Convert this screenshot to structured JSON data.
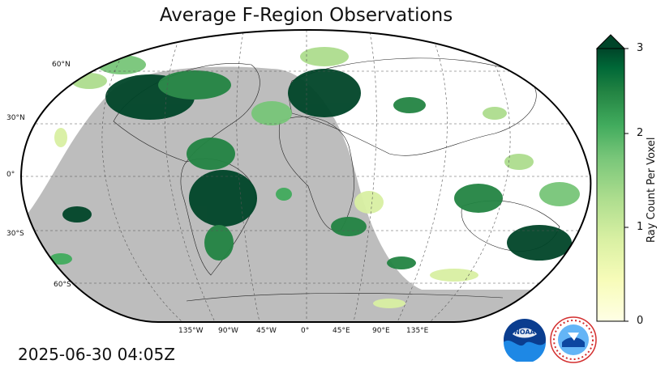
{
  "title": "Average F-Region Observations",
  "timestamp": "2025-06-30 04:05Z",
  "colorbar": {
    "label": "Ray Count Per Voxel",
    "ticks": [
      "0",
      "1",
      "2",
      "3"
    ],
    "min": 0,
    "max": 3,
    "extend": "max",
    "colors": [
      "#ffffe5",
      "#f7fcb9",
      "#d9f0a3",
      "#addd8e",
      "#78c679",
      "#41ab5d",
      "#238443",
      "#006837",
      "#004529"
    ]
  },
  "map": {
    "projection": "Robinson",
    "night_shading_color": "#bdbdbd",
    "lat_labels": [
      "60°N",
      "30°N",
      "0°",
      "30°S",
      "60°S"
    ],
    "lon_labels": [
      "135°W",
      "90°W",
      "45°W",
      "0°",
      "45°E",
      "90°E",
      "135°E"
    ]
  },
  "logos": {
    "noaa": {
      "name": "noaa-logo",
      "text": "NOAA"
    },
    "nws": {
      "name": "nws-logo",
      "text": "NATIONAL WEATHER SERVICE"
    }
  }
}
